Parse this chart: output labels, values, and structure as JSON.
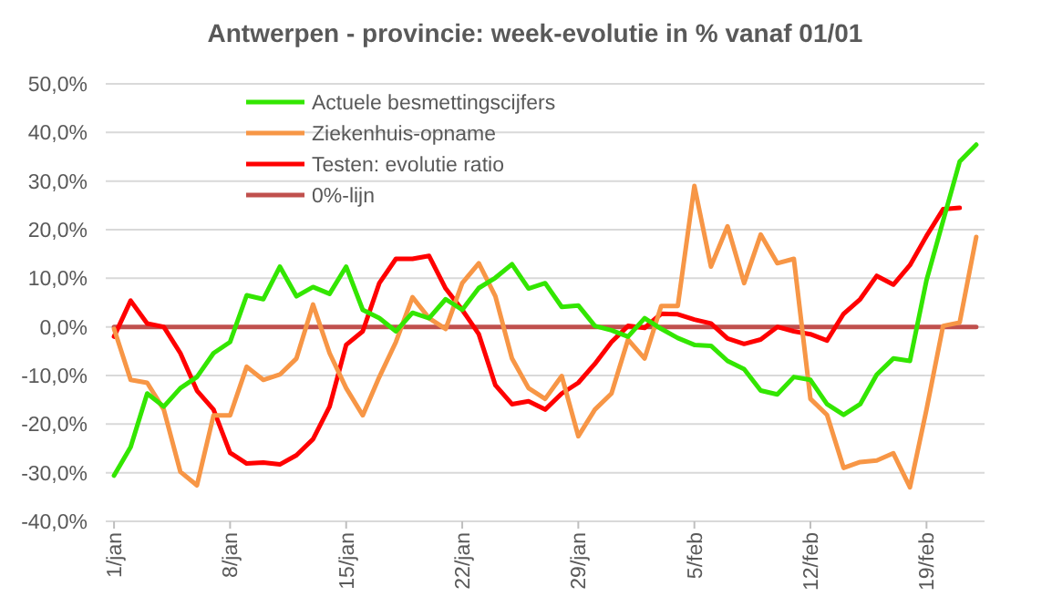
{
  "chart_data": {
    "type": "line",
    "title": "Antwerpen - provincie: week-evolutie in %  vanaf 01/01",
    "categories": [
      "1/jan",
      null,
      null,
      null,
      null,
      null,
      null,
      "8/jan",
      null,
      null,
      null,
      null,
      null,
      null,
      "15/jan",
      null,
      null,
      null,
      null,
      null,
      null,
      "22/jan",
      null,
      null,
      null,
      null,
      null,
      null,
      "29/jan",
      null,
      null,
      null,
      null,
      null,
      null,
      "5/feb",
      null,
      null,
      null,
      null,
      null,
      null,
      "12/feb",
      null,
      null,
      null,
      null,
      null,
      null,
      "19/feb",
      null,
      null,
      null
    ],
    "series": [
      {
        "name": "Actuele besmettingscijfers",
        "color": "#33e600",
        "values": [
          -30.6,
          -24.7,
          -13.7,
          -16.4,
          -12.6,
          -10.3,
          -5.4,
          -3.1,
          6.5,
          5.7,
          12.4,
          6.3,
          8.2,
          6.8,
          12.4,
          3.5,
          1.8,
          -0.9,
          2.9,
          1.8,
          5.7,
          3.5,
          8,
          10.1,
          12.9,
          7.9,
          9,
          4.1,
          4.4,
          0.2,
          -0.7,
          -2,
          1.8,
          -0.4,
          -2.3,
          -3.7,
          -3.9,
          -7,
          -8.7,
          -13.1,
          -13.9,
          -10.3,
          -10.9,
          -15.9,
          -18.1,
          -15.9,
          -9.8,
          -6.5,
          -7,
          9.6,
          21.8,
          34,
          37.5
        ]
      },
      {
        "name": "Ziekenhuis-opname",
        "color": "#f79646",
        "values": [
          -0.4,
          -10.9,
          -11.5,
          -17,
          -29.8,
          -32.6,
          -18.2,
          -18.2,
          -8.2,
          -10.9,
          -9.8,
          -6.5,
          4.6,
          -5.4,
          -12.6,
          -18.2,
          -10.3,
          -3.1,
          6.1,
          1.8,
          -0.4,
          9,
          13.1,
          6.3,
          -6.5,
          -12.6,
          -14.8,
          -10.1,
          -22.5,
          -17,
          -13.7,
          -2.6,
          -6.5,
          4.3,
          4.3,
          29,
          12.4,
          20.7,
          9,
          19,
          13.1,
          14,
          -14.8,
          -18.1,
          -29,
          -27.8,
          -27.5,
          -26,
          -33,
          -17,
          0.2,
          0.9,
          18.5
        ]
      },
      {
        "name": "Testen: evolutie ratio",
        "color": "#ff0000",
        "values": [
          -2,
          5.4,
          0.7,
          0,
          -5.4,
          -13.1,
          -17,
          -25.9,
          -28.1,
          -27.9,
          -28.3,
          -26.4,
          -23.1,
          -16.4,
          -3.7,
          -0.9,
          9,
          14,
          14,
          14.6,
          7.9,
          3.5,
          -1.5,
          -12,
          -15.9,
          -15.3,
          -17,
          -13.7,
          -11.5,
          -7.6,
          -3.1,
          0.2,
          -0.2,
          2.7,
          2.6,
          1.5,
          0.7,
          -2.4,
          -3.5,
          -2.6,
          0,
          -0.9,
          -1.5,
          -2.8,
          2.7,
          5.7,
          10.5,
          8.7,
          12.7,
          18.7,
          24.2,
          24.5,
          null
        ]
      },
      {
        "name": "0%-lijn",
        "color": "#c0504d",
        "values": [
          0,
          0,
          0,
          0,
          0,
          0,
          0,
          0,
          0,
          0,
          0,
          0,
          0,
          0,
          0,
          0,
          0,
          0,
          0,
          0,
          0,
          0,
          0,
          0,
          0,
          0,
          0,
          0,
          0,
          0,
          0,
          0,
          0,
          0,
          0,
          0,
          0,
          0,
          0,
          0,
          0,
          0,
          0,
          0,
          0,
          0,
          0,
          0,
          0,
          0,
          0,
          0,
          0
        ]
      }
    ],
    "ylim": [
      -40,
      50
    ],
    "yticks": [
      {
        "value": -40,
        "label": "-40,0%"
      },
      {
        "value": -30,
        "label": "-30,0%"
      },
      {
        "value": -20,
        "label": "-20,0%"
      },
      {
        "value": -10,
        "label": "-10,0%"
      },
      {
        "value": 0,
        "label": "0,0%"
      },
      {
        "value": 10,
        "label": "10,0%"
      },
      {
        "value": 20,
        "label": "20,0%"
      },
      {
        "value": 30,
        "label": "30,0%"
      },
      {
        "value": 40,
        "label": "40,0%"
      },
      {
        "value": 50,
        "label": "50,0%"
      }
    ],
    "grid": "y",
    "legend": "top",
    "marker": "none",
    "line_style": "solid"
  }
}
